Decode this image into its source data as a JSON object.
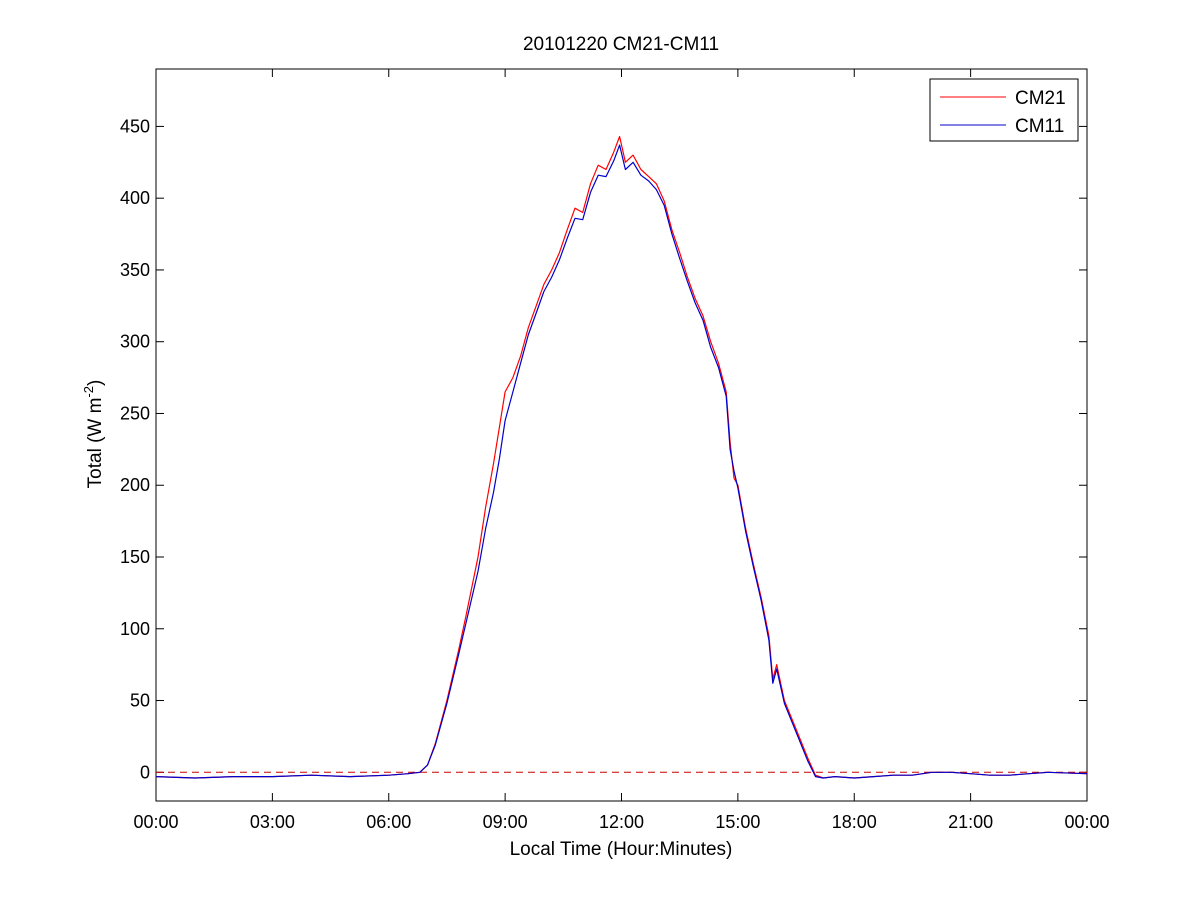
{
  "chart_data": {
    "type": "line",
    "title": "20101220 CM21-CM11",
    "xlabel": "Local Time (Hour:Minutes)",
    "ylabel": "Total (W m",
    "ylabel_sup": "-2",
    "ylabel_close": ")",
    "xlim": [
      0,
      24
    ],
    "ylim": [
      -20,
      490
    ],
    "x_ticks": [
      0,
      3,
      6,
      9,
      12,
      15,
      18,
      21,
      24
    ],
    "x_tick_labels": [
      "00:00",
      "03:00",
      "06:00",
      "09:00",
      "12:00",
      "15:00",
      "18:00",
      "21:00",
      "00:00"
    ],
    "y_ticks": [
      0,
      50,
      100,
      150,
      200,
      250,
      300,
      350,
      400,
      450
    ],
    "y_tick_labels": [
      "0",
      "50",
      "100",
      "150",
      "200",
      "250",
      "300",
      "350",
      "400",
      "450"
    ],
    "grid": false,
    "legend_position": "top-right",
    "reference_line": {
      "y": 0,
      "style": "dashed",
      "color": "#cc0000"
    },
    "series": [
      {
        "name": "CM21",
        "color": "#ff0000",
        "x": [
          0,
          1,
          2,
          3,
          4,
          5,
          6,
          6.5,
          6.8,
          7,
          7.2,
          7.5,
          7.8,
          8,
          8.3,
          8.5,
          8.7,
          8.85,
          9,
          9.2,
          9.4,
          9.6,
          9.8,
          10,
          10.2,
          10.4,
          10.6,
          10.8,
          11,
          11.2,
          11.4,
          11.6,
          11.8,
          11.95,
          12.1,
          12.3,
          12.5,
          12.7,
          12.9,
          13.1,
          13.3,
          13.5,
          13.7,
          13.9,
          14.1,
          14.3,
          14.5,
          14.7,
          14.8,
          14.9,
          15,
          15.2,
          15.4,
          15.6,
          15.8,
          15.9,
          16,
          16.2,
          16.5,
          16.8,
          17,
          17.2,
          17.5,
          18,
          18.5,
          19,
          19.5,
          20,
          20.5,
          21,
          21.5,
          22,
          22.5,
          23,
          24
        ],
        "y": [
          -3,
          -4,
          -3,
          -3,
          -2,
          -3,
          -2,
          -1,
          0,
          5,
          20,
          50,
          85,
          110,
          150,
          185,
          215,
          240,
          265,
          275,
          290,
          310,
          325,
          340,
          350,
          362,
          378,
          393,
          390,
          410,
          423,
          420,
          432,
          443,
          425,
          430,
          420,
          415,
          410,
          398,
          378,
          362,
          345,
          330,
          318,
          300,
          285,
          265,
          230,
          205,
          200,
          170,
          145,
          122,
          95,
          65,
          75,
          50,
          30,
          10,
          -2,
          -4,
          -3,
          -4,
          -3,
          -2,
          -2,
          0,
          0,
          -1,
          -2,
          -2,
          -1,
          0,
          -1
        ]
      },
      {
        "name": "CM11",
        "color": "#0000cc",
        "x": [
          0,
          1,
          2,
          3,
          4,
          5,
          6,
          6.5,
          6.8,
          7,
          7.2,
          7.5,
          7.8,
          8,
          8.3,
          8.5,
          8.7,
          8.85,
          9,
          9.2,
          9.4,
          9.6,
          9.8,
          10,
          10.2,
          10.4,
          10.6,
          10.8,
          11,
          11.2,
          11.4,
          11.6,
          11.8,
          11.95,
          12.1,
          12.3,
          12.5,
          12.7,
          12.9,
          13.1,
          13.3,
          13.5,
          13.7,
          13.9,
          14.1,
          14.3,
          14.5,
          14.7,
          14.8,
          14.9,
          15,
          15.2,
          15.4,
          15.6,
          15.8,
          15.9,
          16,
          16.2,
          16.5,
          16.8,
          17,
          17.2,
          17.5,
          18,
          18.5,
          19,
          19.5,
          20,
          20.5,
          21,
          21.5,
          22,
          22.5,
          23,
          24
        ],
        "y": [
          -3,
          -4,
          -3,
          -3,
          -2,
          -3,
          -2,
          -1,
          0,
          5,
          19,
          48,
          82,
          105,
          140,
          170,
          195,
          218,
          245,
          265,
          285,
          305,
          320,
          335,
          345,
          357,
          372,
          386,
          385,
          404,
          416,
          415,
          426,
          437,
          420,
          425,
          416,
          412,
          406,
          395,
          375,
          358,
          342,
          327,
          315,
          296,
          282,
          262,
          225,
          210,
          198,
          168,
          143,
          120,
          92,
          62,
          72,
          48,
          28,
          8,
          -3,
          -4,
          -3,
          -4,
          -3,
          -2,
          -2,
          0,
          0,
          -1,
          -2,
          -2,
          -1,
          0,
          -1
        ]
      }
    ]
  }
}
